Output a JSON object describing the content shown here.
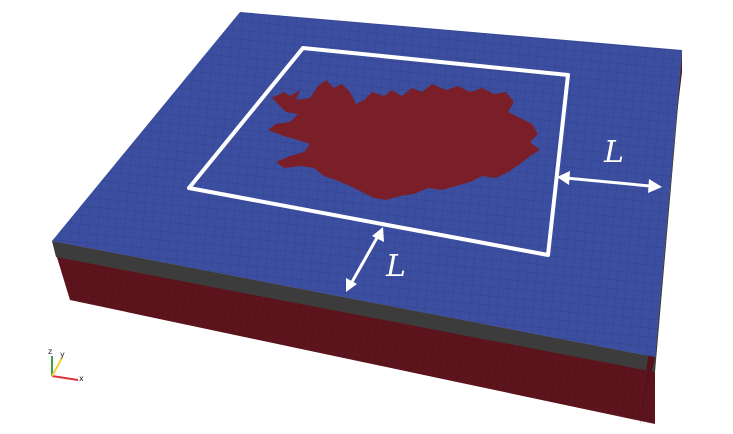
{
  "scene": {
    "dimension_labels": {
      "right": "L",
      "front": "L"
    },
    "axes": {
      "x": "x",
      "y": "y",
      "z": "z"
    },
    "colors": {
      "ocean_top": "#3c4ea0",
      "land": "#7a1f28",
      "side_wall": "#5e141c",
      "layer_band": "#3c3c3c",
      "frame": "#ffffff",
      "axis_x": "#d9343a",
      "axis_y": "#f0d23a",
      "axis_z": "#3aa14a"
    }
  }
}
